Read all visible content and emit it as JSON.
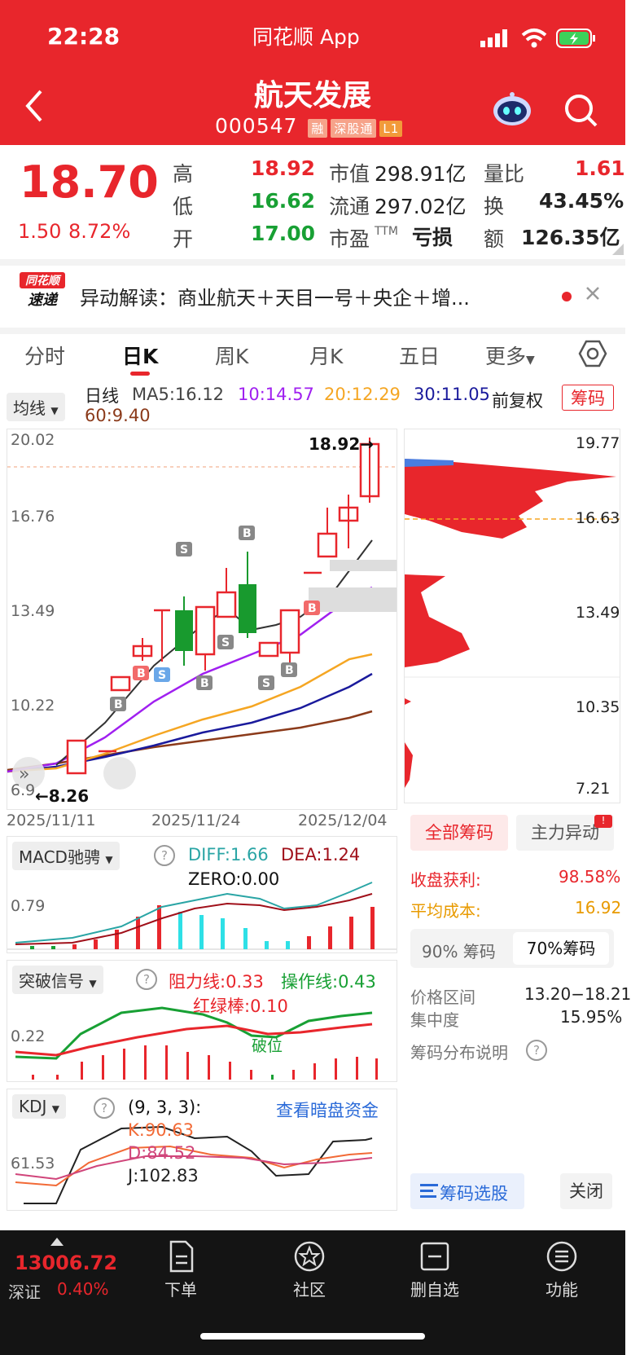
{
  "status": {
    "time": "22:28",
    "app": "同花顺 App"
  },
  "stock": {
    "name": "航天发展",
    "code": "000547",
    "tags": [
      "融",
      "深股通",
      "L1"
    ]
  },
  "quote": {
    "price": "18.70",
    "change": "1.50",
    "pct": "8.72%",
    "high_label": "高",
    "high": "18.92",
    "low_label": "低",
    "low": "16.62",
    "open_label": "开",
    "open": "17.00",
    "mcap_label": "市值",
    "mcap": "298.91亿",
    "float_label": "流通",
    "float": "297.02亿",
    "pe_label": "市盈",
    "pe_sup": "TTM",
    "pe": "亏损",
    "vr_label": "量比",
    "vr": "1.61",
    "turn_label": "换",
    "turn": "43.45%",
    "amt_label": "额",
    "amt": "126.35亿"
  },
  "news": {
    "brand1": "同花顺",
    "brand2": "速递",
    "text": "异动解读：商业航天＋天目一号＋央企＋增..."
  },
  "tabs": [
    "分时",
    "日K",
    "周K",
    "月K",
    "五日",
    "更多"
  ],
  "ma": {
    "selector": "均线",
    "period": "日线",
    "ma5": "MA5:16.12",
    "ma10": "10:14.57",
    "ma20": "20:12.29",
    "ma30": "30:11.05",
    "ma60": "60:9.40",
    "adjust": "前复权",
    "chips_btn": "筹码"
  },
  "kline": {
    "y_labels": [
      "20.02",
      "16.76",
      "13.49",
      "10.22",
      "6.9"
    ],
    "dates": [
      "2025/11/11",
      "2025/11/24",
      "2025/12/04"
    ],
    "high_mark": "18.92→",
    "low_mark": "←8.26"
  },
  "chips": {
    "y_labels": [
      "19.77",
      "16.63",
      "13.49",
      "10.35",
      "7.21"
    ],
    "tab_all": "全部筹码",
    "tab_main": "主力异动",
    "profit_label": "收盘获利:",
    "profit": "98.58%",
    "avg_label": "平均成本:",
    "avg": "16.92",
    "btn90": "90% 筹码",
    "btn70": "70%筹码",
    "range_label": "价格区间",
    "range": "13.20−18.21",
    "conc_label": "集中度",
    "conc": "15.95%",
    "explain": "筹码分布说明",
    "pick": "筹码选股",
    "close": "关闭"
  },
  "macd": {
    "selector": "MACD驰骋",
    "diff": "DIFF:1.66",
    "dea": "DEA:1.24",
    "zero": "ZERO:0.00",
    "y_label": "0.79"
  },
  "breakout": {
    "selector": "突破信号",
    "resist": "阻力线:0.33",
    "oper": "操作线:0.43",
    "rg": "红绿棒:0.10",
    "note": "破位",
    "y_label": "0.22"
  },
  "kdj": {
    "selector": "KDJ",
    "params": "(9, 3, 3):",
    "link": "查看暗盘资金",
    "k": "K:90.63",
    "d": "D:84.52",
    "j": "J:102.83",
    "y_label": "61.53"
  },
  "bottom": {
    "index": "13006.72",
    "market": "深证",
    "idx_pct": "0.40%",
    "nav": [
      "下单",
      "社区",
      "删自选",
      "功能"
    ]
  },
  "colors": {
    "red": "#e8262c",
    "green": "#18a034",
    "ma5": "#333333",
    "ma10": "#a020f0",
    "ma20": "#f5a623",
    "ma30": "#1a1a9c",
    "ma60": "#8b3a1a"
  }
}
